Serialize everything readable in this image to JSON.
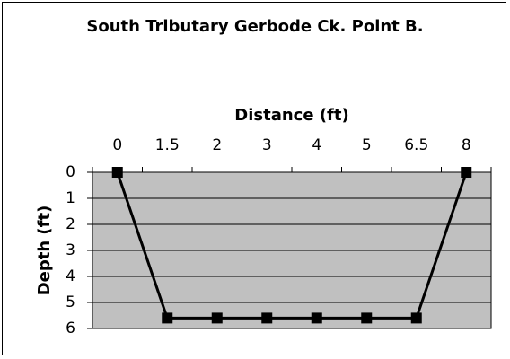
{
  "chart_data": {
    "type": "line",
    "title": "South Tributary Gerbode Ck. Point B.",
    "x_label": "Distance (ft)",
    "y_label": "Depth (ft)",
    "categories": [
      "0",
      "1.5",
      "2",
      "3",
      "4",
      "5",
      "6.5",
      "8"
    ],
    "series": [
      {
        "name": "Depth",
        "color": "#000000",
        "values": [
          0,
          5.6,
          5.6,
          5.6,
          5.6,
          5.6,
          5.6,
          0
        ]
      }
    ],
    "ylim": [
      0,
      6
    ],
    "yticks": [
      0,
      1,
      2,
      3,
      4,
      5,
      6
    ],
    "y_inverted": true,
    "grid": true,
    "plot_background": "#c0c0c0",
    "x_axis_position": "top"
  }
}
